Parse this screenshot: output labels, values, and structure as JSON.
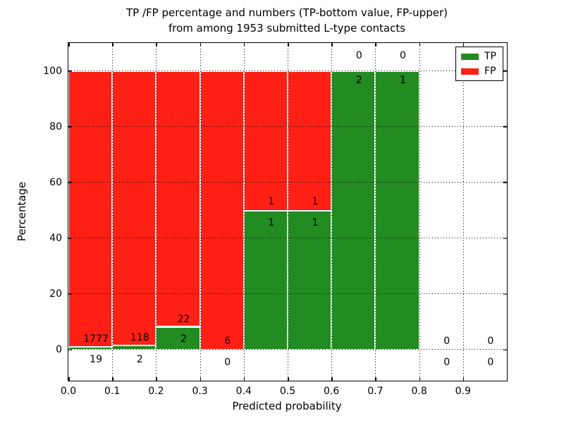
{
  "figure": {
    "title_line1": "TP /FP percentage and numbers (TP-bottom value, FP-upper)",
    "title_line2": "from among 1953 submitted L-type contacts"
  },
  "chart_data": {
    "type": "bar",
    "stacked": true,
    "title": "TP /FP percentage and numbers (TP-bottom value, FP-upper) from among 1953 submitted L-type contacts",
    "xlabel": "Predicted probability",
    "ylabel": "Percentage",
    "total_submitted_contacts": 1953,
    "xlim": [
      0.0,
      1.0
    ],
    "ylim": [
      -11,
      110
    ],
    "grid": true,
    "x_ticks": [
      {
        "value": 0.0,
        "label": "0.0"
      },
      {
        "value": 0.1,
        "label": "0.1"
      },
      {
        "value": 0.2,
        "label": "0.2"
      },
      {
        "value": 0.3,
        "label": "0.3"
      },
      {
        "value": 0.4,
        "label": "0.4"
      },
      {
        "value": 0.5,
        "label": "0.5"
      },
      {
        "value": 0.6,
        "label": "0.6"
      },
      {
        "value": 0.7,
        "label": "0.7"
      },
      {
        "value": 0.8,
        "label": "0.8"
      },
      {
        "value": 0.9,
        "label": "0.9"
      }
    ],
    "y_ticks": [
      {
        "value": 0,
        "label": "0"
      },
      {
        "value": 20,
        "label": "20"
      },
      {
        "value": 40,
        "label": "40"
      },
      {
        "value": 60,
        "label": "60"
      },
      {
        "value": 80,
        "label": "80"
      },
      {
        "value": 100,
        "label": "100"
      }
    ],
    "colors": {
      "tp": "#228b22",
      "fp": "#ff2015",
      "bar_edge": "#ffffff",
      "grid": "#000000"
    },
    "legend": {
      "position": "upper right",
      "items": [
        {
          "label": "TP",
          "color": "#228b22"
        },
        {
          "label": "FP",
          "color": "#ff2015"
        }
      ]
    },
    "bins": [
      {
        "range": [
          0.0,
          0.1
        ],
        "tp_count": 19,
        "fp_count": 1777,
        "tp_pct": 1.06,
        "fp_pct": 98.94,
        "fp_label_y": 3.8,
        "tp_label_y": -3.5
      },
      {
        "range": [
          0.1,
          0.2
        ],
        "tp_count": 2,
        "fp_count": 118,
        "tp_pct": 1.67,
        "fp_pct": 98.33,
        "fp_label_y": 4.4,
        "tp_label_y": -3.5
      },
      {
        "range": [
          0.2,
          0.3
        ],
        "tp_count": 2,
        "fp_count": 22,
        "tp_pct": 8.33,
        "fp_pct": 91.67,
        "fp_label_y": 10.9,
        "tp_label_y": 3.9
      },
      {
        "range": [
          0.3,
          0.4
        ],
        "tp_count": 0,
        "fp_count": 6,
        "tp_pct": 0.0,
        "fp_pct": 100.0,
        "fp_label_y": 3.2,
        "tp_label_y": -4.5
      },
      {
        "range": [
          0.4,
          0.5
        ],
        "tp_count": 1,
        "fp_count": 1,
        "tp_pct": 50.0,
        "fp_pct": 50.0,
        "fp_label_y": 53.2,
        "tp_label_y": 45.6
      },
      {
        "range": [
          0.5,
          0.6
        ],
        "tp_count": 1,
        "fp_count": 1,
        "tp_pct": 50.0,
        "fp_pct": 50.0,
        "fp_label_y": 53.2,
        "tp_label_y": 45.6
      },
      {
        "range": [
          0.6,
          0.7
        ],
        "tp_count": 2,
        "fp_count": 0,
        "tp_pct": 100.0,
        "fp_pct": 0.0,
        "fp_label_y": 105.5,
        "tp_label_y": 96.6
      },
      {
        "range": [
          0.7,
          0.8
        ],
        "tp_count": 1,
        "fp_count": 0,
        "tp_pct": 100.0,
        "fp_pct": 0.0,
        "fp_label_y": 105.5,
        "tp_label_y": 96.6
      },
      {
        "range": [
          0.8,
          0.9
        ],
        "tp_count": 0,
        "fp_count": 0,
        "tp_pct": 0.0,
        "fp_pct": 0.0,
        "fp_label_y": 3.2,
        "tp_label_y": -4.5
      },
      {
        "range": [
          0.9,
          1.0
        ],
        "tp_count": 0,
        "fp_count": 0,
        "tp_pct": 0.0,
        "fp_pct": 0.0,
        "fp_label_y": 3.2,
        "tp_label_y": -4.5
      }
    ]
  }
}
